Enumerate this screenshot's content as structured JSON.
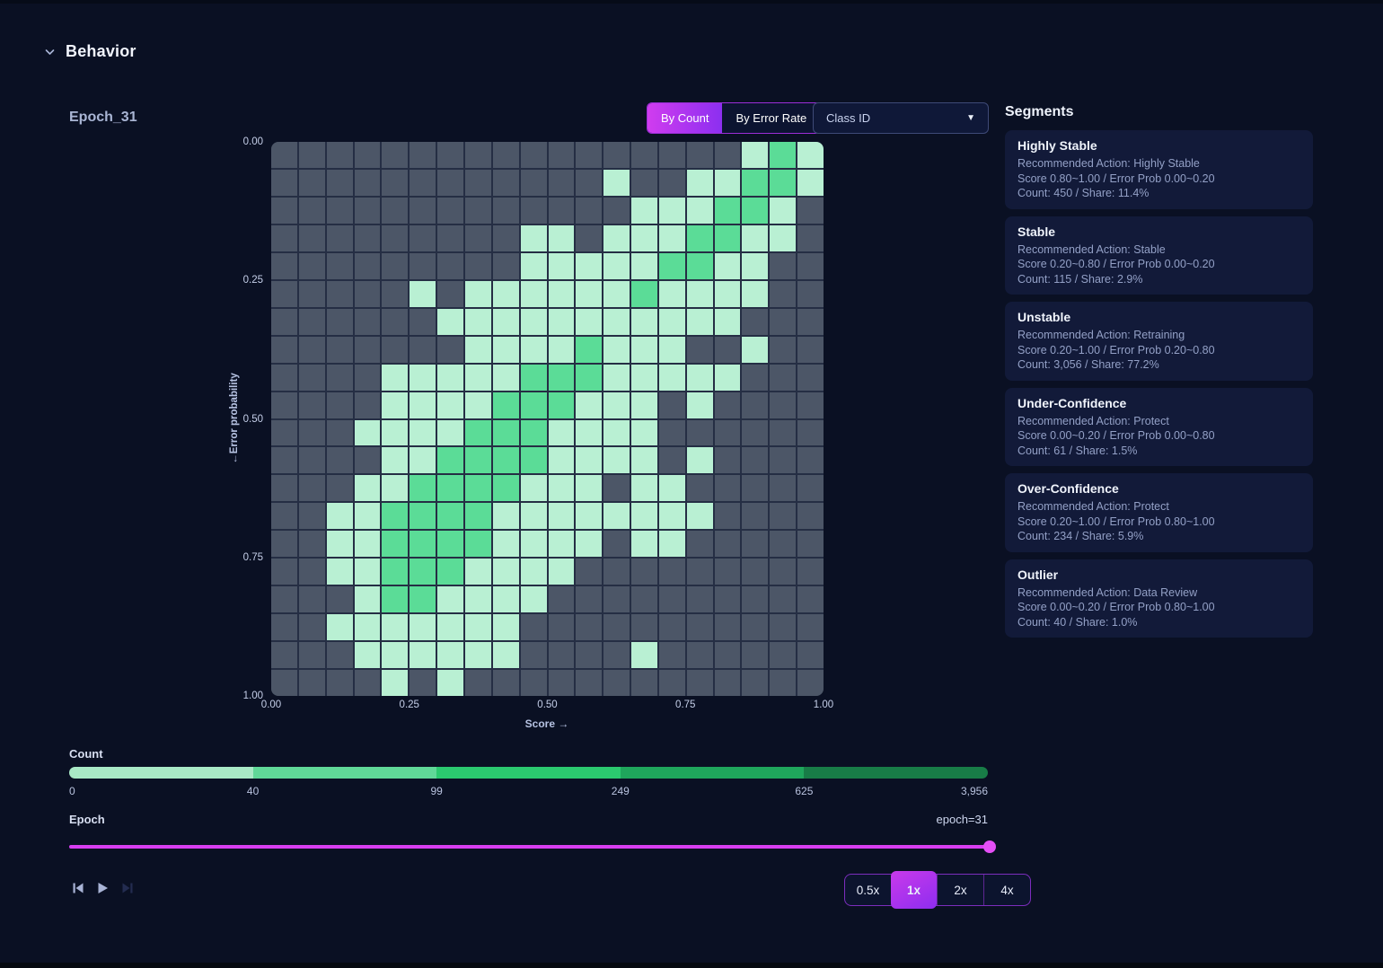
{
  "page": {
    "section_title": "Behavior",
    "background_color": "#0a1023",
    "accent_gradient": [
      "#d03cef",
      "#8c2ff0"
    ],
    "slider_color": "#d83ef1"
  },
  "toolbar": {
    "by_count_label": "By Count",
    "by_error_rate_label": "By Error Rate",
    "active_mode": "By Count",
    "class_id_label": "Class ID",
    "class_id_caret_icon": "chevron-down-icon"
  },
  "segments": {
    "title": "Segments",
    "cards": [
      {
        "name": "Highly Stable",
        "action_line": "Recommended Action: Highly Stable",
        "range_line": "Score 0.80~1.00 / Error Prob 0.00~0.20",
        "count_line": "Count: 450 / Share: 11.4%"
      },
      {
        "name": "Stable",
        "action_line": "Recommended Action: Stable",
        "range_line": "Score 0.20~0.80 / Error Prob 0.00~0.20",
        "count_line": "Count: 115 / Share: 2.9%"
      },
      {
        "name": "Unstable",
        "action_line": "Recommended Action: Retraining",
        "range_line": "Score 0.20~1.00 / Error Prob 0.20~0.80",
        "count_line": "Count: 3,056 / Share: 77.2%"
      },
      {
        "name": "Under-Confidence",
        "action_line": "Recommended Action: Protect",
        "range_line": "Score 0.00~0.20 / Error Prob 0.00~0.80",
        "count_line": "Count: 61 / Share: 1.5%"
      },
      {
        "name": "Over-Confidence",
        "action_line": "Recommended Action: Protect",
        "range_line": "Score 0.20~1.00 / Error Prob 0.80~1.00",
        "count_line": "Count: 234 / Share: 5.9%"
      },
      {
        "name": "Outlier",
        "action_line": "Recommended Action: Data Review",
        "range_line": "Score 0.00~0.20 / Error Prob 0.80~1.00",
        "count_line": "Count: 40 / Share: 1.0%"
      }
    ]
  },
  "chart_data": {
    "type": "heatmap",
    "title": "Epoch_31",
    "xlabel": "Score →",
    "ylabel": "←Error probability",
    "x_ticks": [
      "0.00",
      "0.25",
      "0.50",
      "0.75",
      "1.00"
    ],
    "y_ticks": [
      "0.00",
      "0.25",
      "0.50",
      "0.75",
      "1.00"
    ],
    "grid_size": 20,
    "cell_colors": {
      "0": "#4c5667",
      "1": "#b9f0d3",
      "2": "#5bdc97"
    },
    "cell_meaning": {
      "0": "no samples",
      "1": "low count (~1-99)",
      "2": "high count (~100+)"
    },
    "matrix": [
      [
        0,
        0,
        0,
        0,
        0,
        0,
        0,
        0,
        0,
        0,
        0,
        0,
        0,
        0,
        0,
        0,
        0,
        1,
        2,
        1
      ],
      [
        0,
        0,
        0,
        0,
        0,
        0,
        0,
        0,
        0,
        0,
        0,
        0,
        1,
        0,
        0,
        1,
        1,
        2,
        2,
        1
      ],
      [
        0,
        0,
        0,
        0,
        0,
        0,
        0,
        0,
        0,
        0,
        0,
        0,
        0,
        1,
        1,
        1,
        2,
        2,
        1,
        0
      ],
      [
        0,
        0,
        0,
        0,
        0,
        0,
        0,
        0,
        0,
        1,
        1,
        0,
        1,
        1,
        1,
        2,
        2,
        1,
        1,
        0
      ],
      [
        0,
        0,
        0,
        0,
        0,
        0,
        0,
        0,
        0,
        1,
        1,
        1,
        1,
        1,
        2,
        2,
        1,
        1,
        0,
        0
      ],
      [
        0,
        0,
        0,
        0,
        0,
        1,
        0,
        1,
        1,
        1,
        1,
        1,
        1,
        2,
        1,
        1,
        1,
        1,
        0,
        0
      ],
      [
        0,
        0,
        0,
        0,
        0,
        0,
        1,
        1,
        1,
        1,
        1,
        1,
        1,
        1,
        1,
        1,
        1,
        0,
        0,
        0
      ],
      [
        0,
        0,
        0,
        0,
        0,
        0,
        0,
        1,
        1,
        1,
        1,
        2,
        1,
        1,
        1,
        0,
        0,
        1,
        0,
        0
      ],
      [
        0,
        0,
        0,
        0,
        1,
        1,
        1,
        1,
        1,
        2,
        2,
        2,
        1,
        1,
        1,
        1,
        1,
        0,
        0,
        0
      ],
      [
        0,
        0,
        0,
        0,
        1,
        1,
        1,
        1,
        2,
        2,
        2,
        1,
        1,
        1,
        0,
        1,
        0,
        0,
        0,
        0
      ],
      [
        0,
        0,
        0,
        1,
        1,
        1,
        1,
        2,
        2,
        2,
        1,
        1,
        1,
        1,
        0,
        0,
        0,
        0,
        0,
        0
      ],
      [
        0,
        0,
        0,
        0,
        1,
        1,
        2,
        2,
        2,
        2,
        1,
        1,
        1,
        1,
        0,
        1,
        0,
        0,
        0,
        0
      ],
      [
        0,
        0,
        0,
        1,
        1,
        2,
        2,
        2,
        2,
        1,
        1,
        1,
        0,
        1,
        1,
        0,
        0,
        0,
        0,
        0
      ],
      [
        0,
        0,
        1,
        1,
        2,
        2,
        2,
        2,
        1,
        1,
        1,
        1,
        1,
        1,
        1,
        1,
        0,
        0,
        0,
        0
      ],
      [
        0,
        0,
        1,
        1,
        2,
        2,
        2,
        2,
        1,
        1,
        1,
        1,
        0,
        1,
        1,
        0,
        0,
        0,
        0,
        0
      ],
      [
        0,
        0,
        1,
        1,
        2,
        2,
        2,
        1,
        1,
        1,
        1,
        0,
        0,
        0,
        0,
        0,
        0,
        0,
        0,
        0
      ],
      [
        0,
        0,
        0,
        1,
        2,
        2,
        1,
        1,
        1,
        1,
        0,
        0,
        0,
        0,
        0,
        0,
        0,
        0,
        0,
        0
      ],
      [
        0,
        0,
        1,
        1,
        1,
        1,
        1,
        1,
        1,
        0,
        0,
        0,
        0,
        0,
        0,
        0,
        0,
        0,
        0,
        0
      ],
      [
        0,
        0,
        0,
        1,
        1,
        1,
        1,
        1,
        1,
        0,
        0,
        0,
        0,
        1,
        0,
        0,
        0,
        0,
        0,
        0
      ],
      [
        0,
        0,
        0,
        0,
        1,
        0,
        1,
        0,
        0,
        0,
        0,
        0,
        0,
        0,
        0,
        0,
        0,
        0,
        0,
        0
      ]
    ],
    "legend": {
      "label": "Count",
      "ticks": [
        "0",
        "40",
        "99",
        "249",
        "625",
        "3,956"
      ],
      "colors": [
        "#a9e9c6",
        "#60d898",
        "#2bc96f",
        "#1fa65c",
        "#187c47"
      ]
    }
  },
  "epoch": {
    "label": "Epoch",
    "value_label": "epoch=31"
  },
  "player": {
    "icons": [
      "skip-to-start",
      "play",
      "skip-to-end"
    ],
    "skip_to_end_disabled": true,
    "speeds": [
      "0.5x",
      "1x",
      "2x",
      "4x"
    ],
    "active_speed": "1x"
  }
}
